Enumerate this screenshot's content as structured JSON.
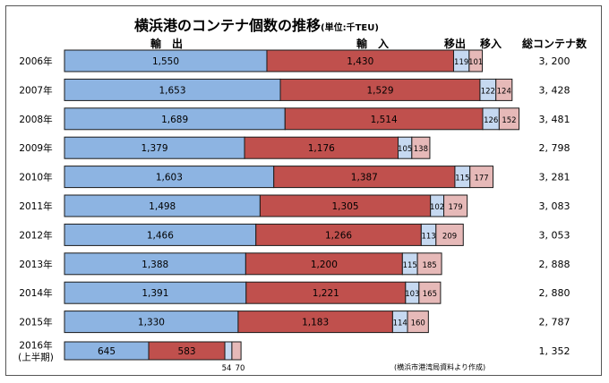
{
  "chart_data": {
    "type": "bar",
    "stacked": true,
    "orientation": "horizontal",
    "title": "横浜港のコンテナ個数の推移",
    "unit": "(単位:千TEU)",
    "column_headers": {
      "export": "輸　出",
      "import": "輸　入",
      "out_transfer": "移出",
      "in_transfer": "移入",
      "total": "総コンテナ数"
    },
    "categories": [
      "2006年",
      "2007年",
      "2008年",
      "2009年",
      "2010年",
      "2011年",
      "2012年",
      "2013年",
      "2014年",
      "2015年",
      "2016年\n(上半期)"
    ],
    "series": [
      {
        "name": "輸出",
        "color": "#8db4e2",
        "values": [
          1550,
          1653,
          1689,
          1379,
          1603,
          1498,
          1466,
          1388,
          1391,
          1330,
          645
        ],
        "labels": [
          "1,550",
          "1,653",
          "1,689",
          "1,379",
          "1,603",
          "1,498",
          "1,466",
          "1,388",
          "1,391",
          "1,330",
          "645"
        ]
      },
      {
        "name": "輸入",
        "color": "#c0504d",
        "values": [
          1430,
          1529,
          1514,
          1176,
          1387,
          1305,
          1266,
          1200,
          1221,
          1183,
          583
        ],
        "labels": [
          "1,430",
          "1,529",
          "1,514",
          "1,176",
          "1,387",
          "1,305",
          "1,266",
          "1,200",
          "1,221",
          "1,183",
          "583"
        ]
      },
      {
        "name": "移出",
        "color": "#c6d9f1",
        "values": [
          119,
          122,
          126,
          105,
          115,
          102,
          113,
          115,
          103,
          114,
          54
        ],
        "labels": [
          "119",
          "122",
          "126",
          "105",
          "115",
          "102",
          "113",
          "115",
          "103",
          "114",
          "54"
        ]
      },
      {
        "name": "移入",
        "color": "#e6b9b8",
        "values": [
          101,
          124,
          152,
          138,
          177,
          179,
          209,
          185,
          165,
          160,
          70
        ],
        "labels": [
          "101",
          "124",
          "152",
          "138",
          "177",
          "179",
          "209",
          "185",
          "165",
          "160",
          "70"
        ]
      }
    ],
    "totals": [
      "3, 200",
      "3, 428",
      "3, 481",
      "2, 798",
      "3, 281",
      "3, 083",
      "3, 053",
      "2, 888",
      "2, 880",
      "2, 787",
      "1, 352"
    ],
    "source": "(横浜市港湾局資料より作成)"
  }
}
